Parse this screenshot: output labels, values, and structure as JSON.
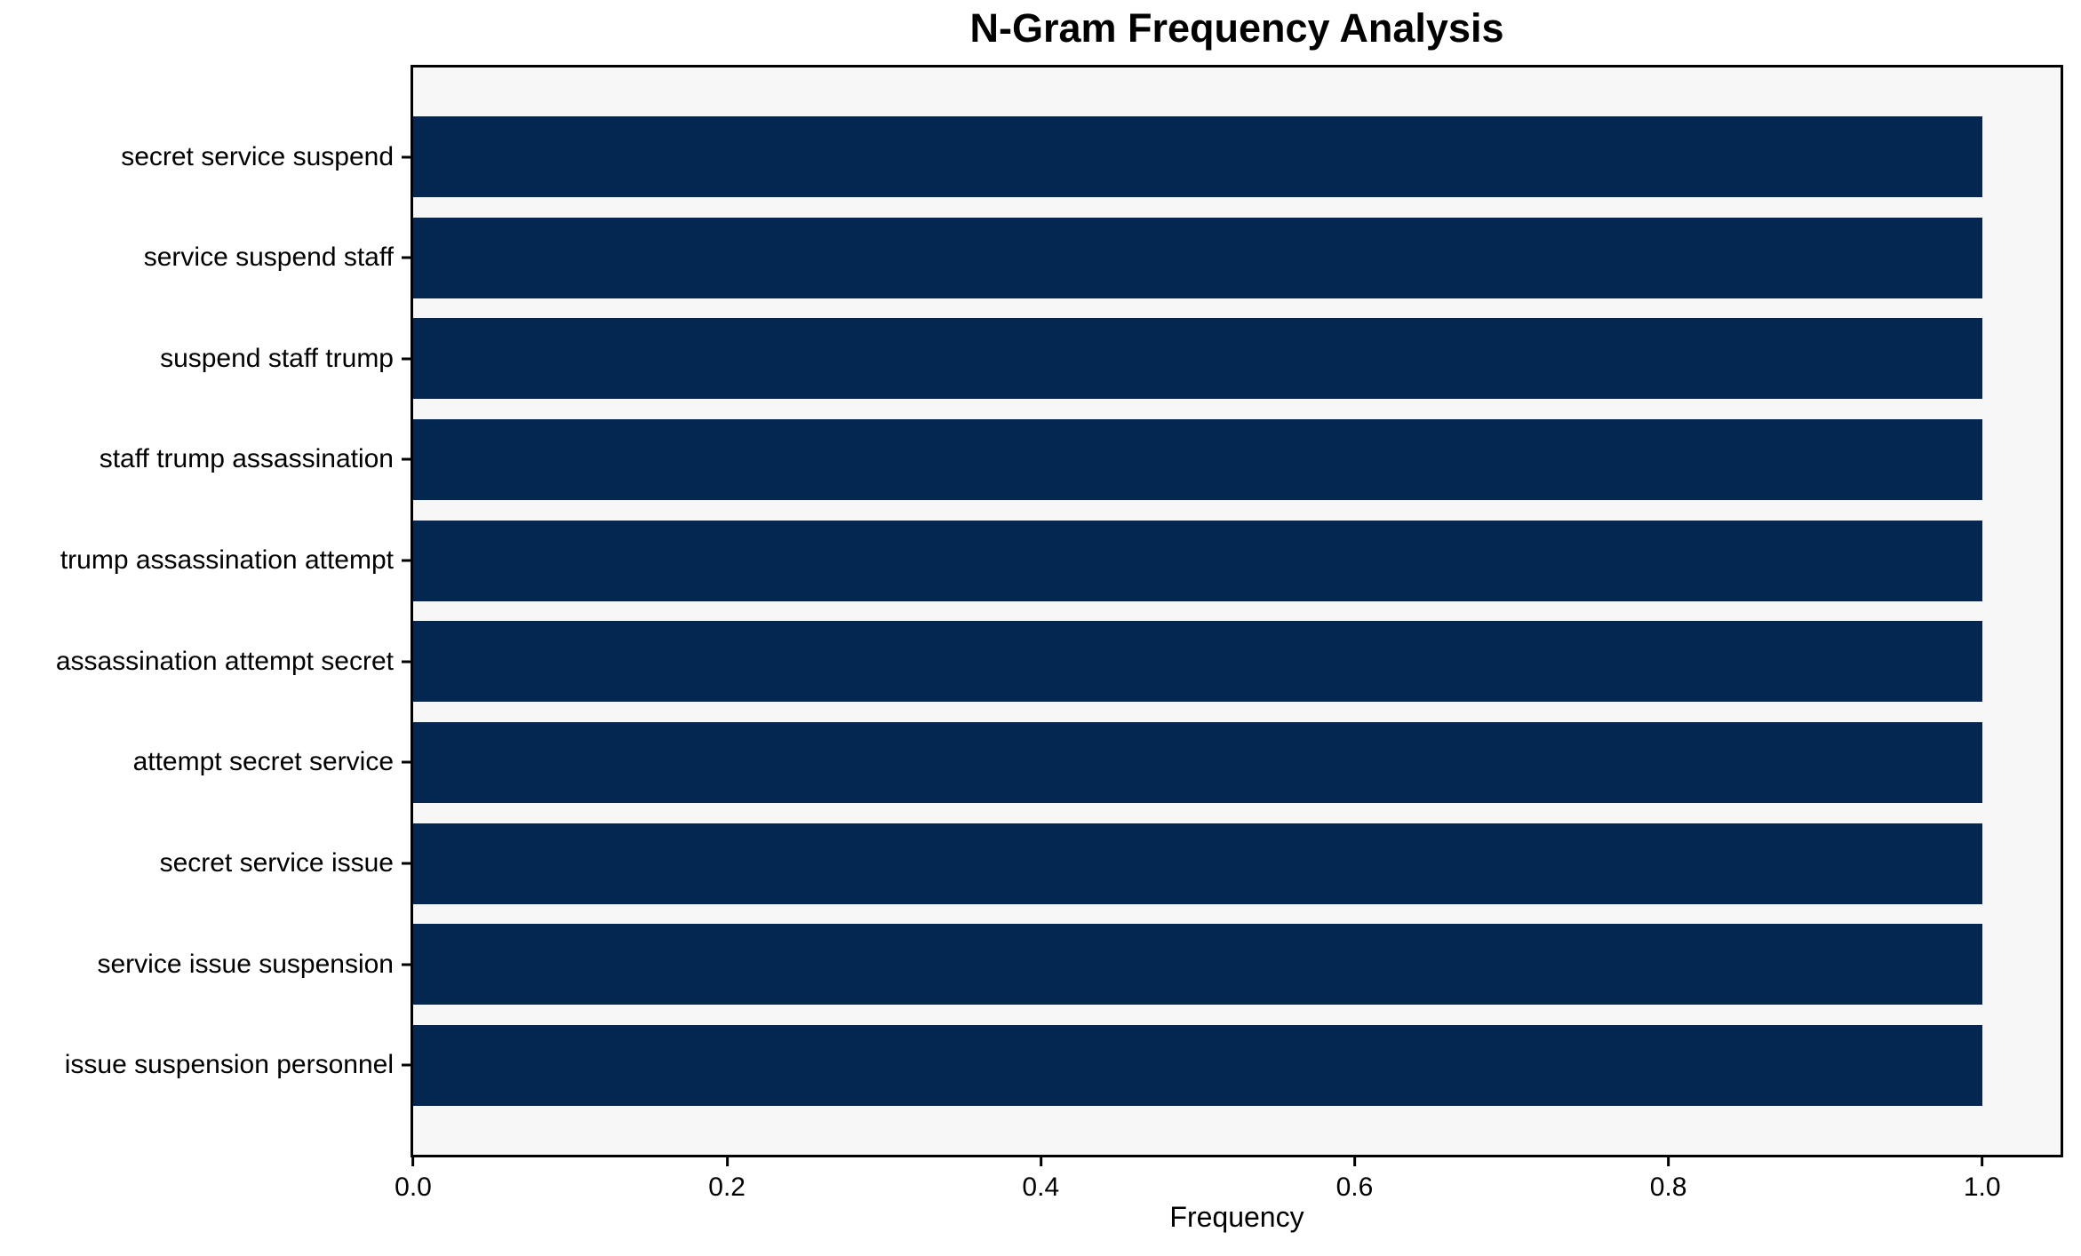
{
  "chart_data": {
    "type": "bar",
    "orientation": "horizontal",
    "title": "N-Gram Frequency Analysis",
    "xlabel": "Frequency",
    "ylabel": "",
    "categories": [
      "secret service suspend",
      "service suspend staff",
      "suspend staff trump",
      "staff trump assassination",
      "trump assassination attempt",
      "assassination attempt secret",
      "attempt secret service",
      "secret service issue",
      "service issue suspension",
      "issue suspension personnel"
    ],
    "values": [
      1.0,
      1.0,
      1.0,
      1.0,
      1.0,
      1.0,
      1.0,
      1.0,
      1.0,
      1.0
    ],
    "xlim": [
      0,
      1.05
    ],
    "xtick_values": [
      0.0,
      0.2,
      0.4,
      0.6,
      0.8,
      1.0
    ],
    "xtick_labels": [
      "0.0",
      "0.2",
      "0.4",
      "0.6",
      "0.8",
      "1.0"
    ],
    "grid": false,
    "colors": {
      "bar": "#032750",
      "plot_background": "#f7f7f8",
      "figure_background": "#ffffff",
      "spine": "#000000",
      "text": "#000000"
    }
  }
}
